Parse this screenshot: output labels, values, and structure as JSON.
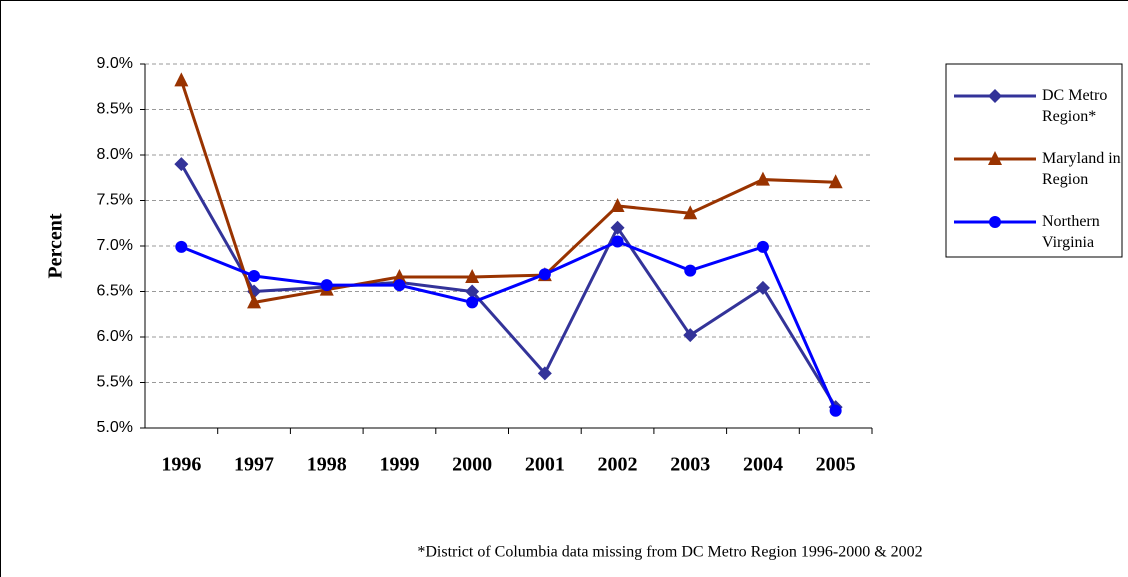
{
  "chart_data": {
    "type": "line",
    "y_label": "Percent",
    "footnote": "*District of Columbia data missing from DC Metro Region 1996-2000 & 2002",
    "categories": [
      "1996",
      "1997",
      "1998",
      "1999",
      "2000",
      "2001",
      "2002",
      "2003",
      "2004",
      "2005"
    ],
    "series": [
      {
        "name": "DC Metro Region*",
        "color": "#333399",
        "marker": "diamond",
        "values": [
          7.9,
          6.5,
          6.55,
          6.6,
          6.5,
          5.6,
          7.2,
          6.02,
          6.54,
          5.23
        ]
      },
      {
        "name": "Maryland in Region",
        "color": "#993300",
        "marker": "triangle",
        "values": [
          8.82,
          6.38,
          6.52,
          6.66,
          6.66,
          6.68,
          7.44,
          7.36,
          7.73,
          7.7
        ]
      },
      {
        "name": "Northern Virginia",
        "color": "#0000ff",
        "marker": "circle",
        "values": [
          6.99,
          6.67,
          6.57,
          6.57,
          6.38,
          6.69,
          7.05,
          6.73,
          6.99,
          5.19
        ]
      }
    ],
    "ylim": [
      5.0,
      9.0
    ],
    "yticks": [
      {
        "value": 5.0,
        "label": "5.0%"
      },
      {
        "value": 5.5,
        "label": "5.5%"
      },
      {
        "value": 6.0,
        "label": "6.0%"
      },
      {
        "value": 6.5,
        "label": "6.5%"
      },
      {
        "value": 7.0,
        "label": "7.0%"
      },
      {
        "value": 7.5,
        "label": "7.5%"
      },
      {
        "value": 8.0,
        "label": "8.0%"
      },
      {
        "value": 8.5,
        "label": "8.5%"
      },
      {
        "value": 9.0,
        "label": "9.0%"
      }
    ],
    "grid": true,
    "legend": "right"
  }
}
